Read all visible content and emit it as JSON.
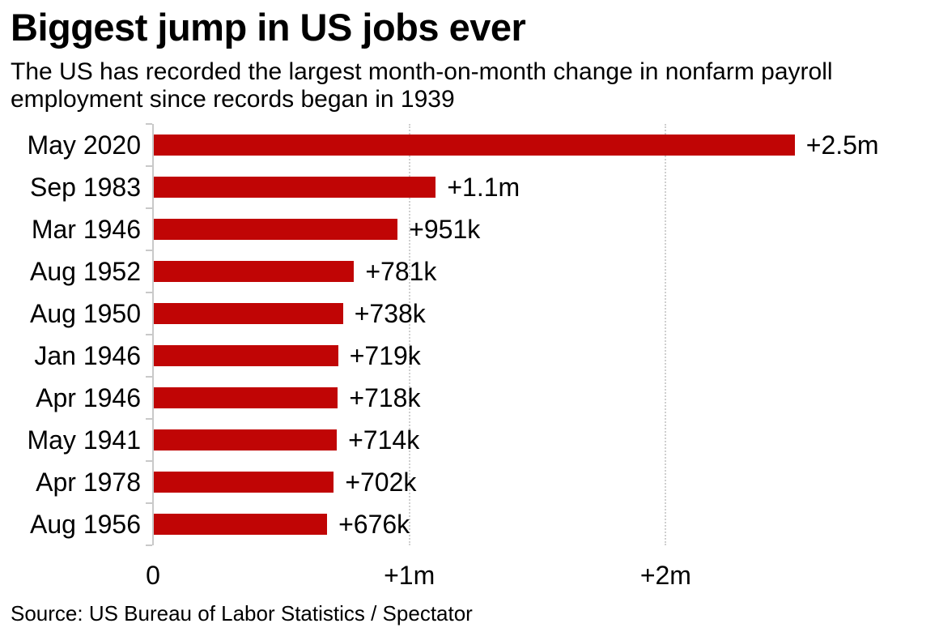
{
  "header": {
    "title": "Biggest jump in US jobs ever",
    "subtitle": "The US has recorded the largest month-on-month change in nonfarm payroll employment since records began in 1939"
  },
  "source_note": "Source: US Bureau of Labor Statistics / Spectator",
  "colors": {
    "bar": "#c00505",
    "axis": "#c9c9c9",
    "gridline": "#cfcfcf",
    "text": "#000000",
    "background": "#ffffff"
  },
  "chart_data": {
    "type": "bar",
    "orientation": "horizontal",
    "title": "Biggest jump in US jobs ever",
    "subtitle": "The US has recorded the largest month-on-month change in nonfarm payroll employment since records began in 1939",
    "unit": "month-on-month change in nonfarm payroll employment (jobs)",
    "categories": [
      "May 2020",
      "Sep 1983",
      "Mar 1946",
      "Aug 1952",
      "Aug 1950",
      "Jan 1946",
      "Apr 1946",
      "May 1941",
      "Apr 1978",
      "Aug 1956"
    ],
    "values_thousands": [
      2500,
      1100,
      951,
      781,
      738,
      719,
      718,
      714,
      702,
      676
    ],
    "value_labels": [
      "+2.5m",
      "+1.1m",
      "+951k",
      "+781k",
      "+738k",
      "+719k",
      "+718k",
      "+714k",
      "+702k",
      "+676k"
    ],
    "xlabel": "",
    "ylabel": "",
    "x_axis": {
      "range_thousands": [
        0,
        3040
      ],
      "ticks": [
        {
          "value_thousands": 0,
          "label": "0"
        },
        {
          "value_thousands": 1000,
          "label": "+1m"
        },
        {
          "value_thousands": 2000,
          "label": "+2m"
        }
      ]
    },
    "grid": {
      "vertical_gridlines": "dotted at +1m and +2m",
      "horizontal_gridlines": "none"
    },
    "legend": "none",
    "source": "Source: US Bureau of Labor Statistics / Spectator"
  }
}
